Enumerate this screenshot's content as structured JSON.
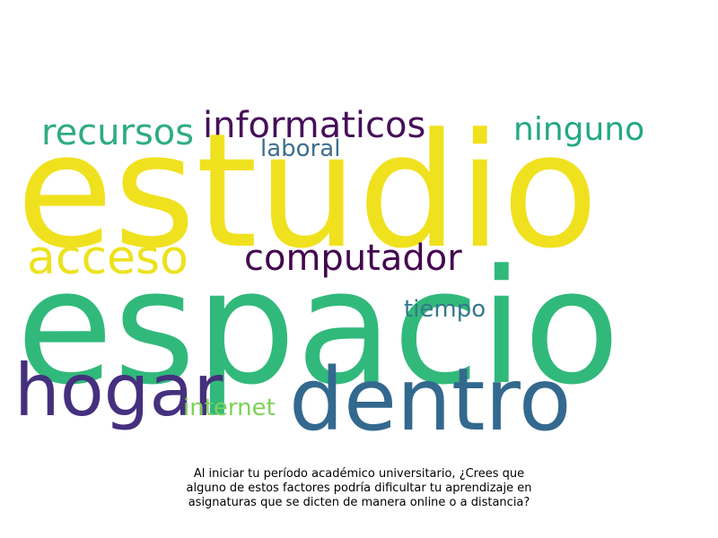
{
  "words": [
    {
      "key": "estudio",
      "text": "estudio",
      "color": "#f0e11f"
    },
    {
      "key": "espacio",
      "text": "espacio",
      "color": "#31b97b"
    },
    {
      "key": "dentro",
      "text": "dentro",
      "color": "#33698e"
    },
    {
      "key": "hogar",
      "text": "hogar",
      "color": "#45307e"
    },
    {
      "key": "acceso",
      "text": "acceso",
      "color": "#ede21f"
    },
    {
      "key": "recursos",
      "text": "recursos",
      "color": "#2fac82"
    },
    {
      "key": "informaticos",
      "text": "informaticos",
      "color": "#470f5a"
    },
    {
      "key": "ninguno",
      "text": "ninguno",
      "color": "#23a883"
    },
    {
      "key": "computador",
      "text": "computador",
      "color": "#44074f"
    },
    {
      "key": "laboral",
      "text": "laboral",
      "color": "#3e6e8e"
    },
    {
      "key": "tiempo",
      "text": "tiempo",
      "color": "#33798b"
    },
    {
      "key": "internet",
      "text": "internet",
      "color": "#7ed159"
    }
  ],
  "caption": {
    "line1": "Al iniciar tu período académico universitario, ¿Crees que",
    "line2": "alguno de estos factores podría dificultar tu aprendizaje en",
    "line3": "asignaturas que se dicten de manera online o a distancia?"
  }
}
